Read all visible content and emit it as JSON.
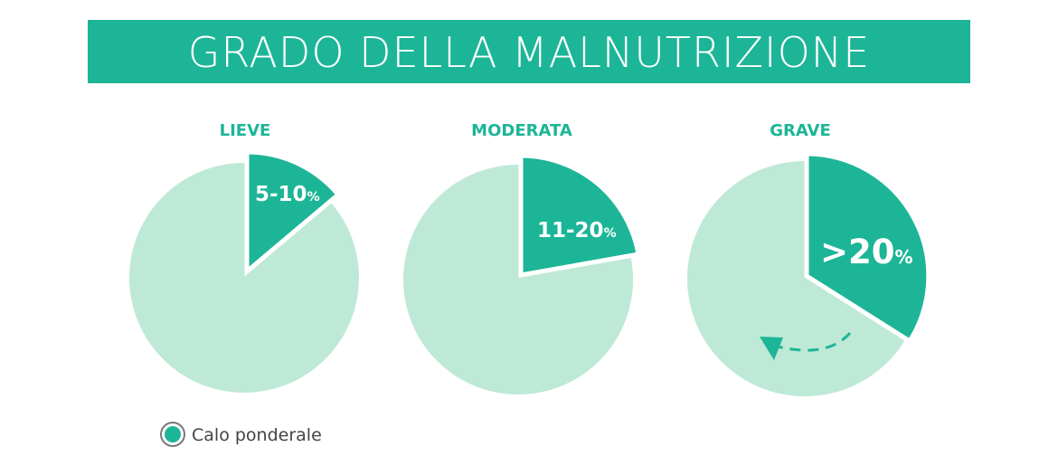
{
  "header": {
    "title": "GRADO DELLA MALNUTRIZIONE"
  },
  "panels": [
    {
      "label": "LIEVE",
      "slice_text": "5-10",
      "slice_unit": "%"
    },
    {
      "label": "MODERATA",
      "slice_text": "11-20",
      "slice_unit": "%"
    },
    {
      "label": "GRAVE",
      "slice_text": ">20",
      "slice_unit": "%"
    }
  ],
  "legend": {
    "label": "Calo ponderale"
  }
}
